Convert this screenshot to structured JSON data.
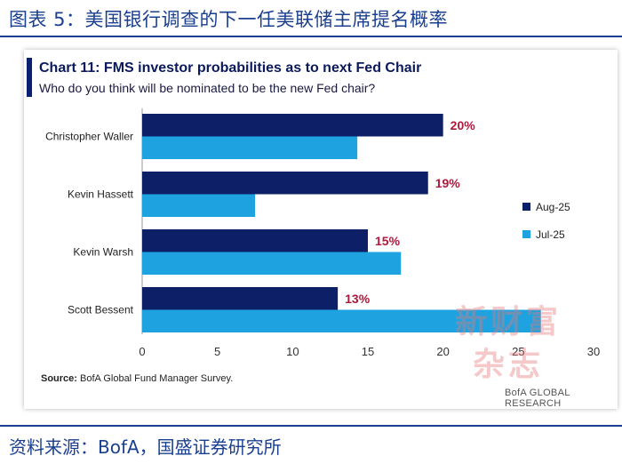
{
  "figure": {
    "title": "图表 5：美国银行调查的下一任美联储主席提名概率",
    "source": "资料来源：BofA，国盛证券研究所"
  },
  "chart_header": {
    "title": "Chart 11: FMS investor probabilities as to next Fed Chair",
    "subtitle": "Who do you think will be nominated to be the new Fed chair?"
  },
  "note": {
    "label": "Source:",
    "text": "BofA Global Fund Manager Survey."
  },
  "watermark": {
    "line1": "新财富",
    "line2": "杂志"
  },
  "brand": "BofA GLOBAL RESEARCH",
  "colors": {
    "aug": "#0d1f66",
    "jul": "#1fa3e0",
    "label_red": "#b0183c"
  },
  "chart_data": {
    "type": "bar",
    "orientation": "horizontal",
    "categories": [
      "Christopher Waller",
      "Kevin Hassett",
      "Kevin Warsh",
      "Scott Bessent"
    ],
    "series": [
      {
        "name": "Aug-25",
        "values": [
          20,
          19,
          15,
          13
        ],
        "labels": [
          "20%",
          "19%",
          "15%",
          "13%"
        ]
      },
      {
        "name": "Jul-25",
        "values": [
          14.3,
          7.5,
          17.2,
          26.5
        ]
      }
    ],
    "xlim": [
      0,
      30
    ],
    "xticks": [
      "0",
      "5",
      "10",
      "15",
      "20",
      "25",
      "30"
    ],
    "legend": "right"
  }
}
